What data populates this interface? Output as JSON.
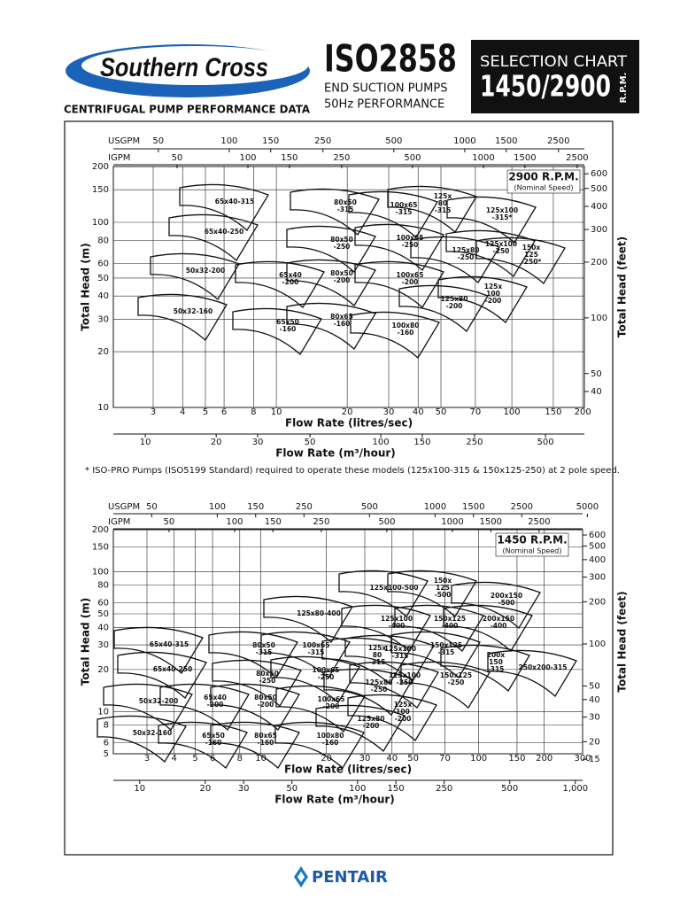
{
  "header": {
    "brand": "Southern Cross",
    "subtitle": "CENTRIFUGAL PUMP PERFORMANCE DATA",
    "standard": "ISO2858",
    "line1": "END SUCTION PUMPS",
    "line2": "50Hz PERFORMANCE",
    "badge_title": "SELECTION CHART",
    "badge_speed": "1450/2900",
    "badge_unit": "R.P.M."
  },
  "charts": [
    {
      "speed": "2900 R.P.M.",
      "speed_note": "(Nominal Speed)",
      "usgpm_label": "USGPM",
      "usgpm_ticks": [
        50,
        100,
        150,
        250,
        500,
        1000,
        1500,
        2500
      ],
      "igpm_label": "IGPM",
      "igpm_ticks": [
        50,
        100,
        150,
        250,
        500,
        1000,
        1500,
        2500
      ],
      "flow_ls_label": "Flow Rate (litres/sec)",
      "flow_ls_ticks": [
        3,
        4,
        5,
        6,
        8,
        10,
        20,
        30,
        40,
        50,
        70,
        100,
        150,
        200
      ],
      "m3h_label": "Flow Rate (m³/hour)",
      "m3h_ticks": [
        10,
        20,
        30,
        50,
        100,
        150,
        250,
        500
      ],
      "head_m_label": "Total Head (m)",
      "head_m_ticks": [
        10,
        20,
        30,
        40,
        50,
        60,
        80,
        100,
        150,
        200
      ],
      "head_ft_label": "Total Head (feet)",
      "head_ft_ticks": [
        40,
        50,
        100,
        200,
        300,
        400,
        500,
        600
      ],
      "models": [
        [
          "65x40-315"
        ],
        [
          "65x40-250"
        ],
        [
          "50x32-200"
        ],
        [
          "50x32-160"
        ],
        [
          "80x50",
          "-315"
        ],
        [
          "100x65",
          "-315"
        ],
        [
          "125x",
          "80",
          "-315"
        ],
        [
          "125x100",
          "-315*"
        ],
        [
          "80x50",
          "-250"
        ],
        [
          "100x65",
          "-250"
        ],
        [
          "125x80",
          "-250"
        ],
        [
          "125x100",
          "-250"
        ],
        [
          "150x",
          "125",
          "-250*"
        ],
        [
          "65x40",
          "-200"
        ],
        [
          "80x50",
          "-200"
        ],
        [
          "100x65",
          "-200"
        ],
        [
          "125x",
          "100",
          "-200"
        ],
        [
          "125x80",
          "-200"
        ],
        [
          "65x50",
          "-160"
        ],
        [
          "80x65",
          "-160"
        ],
        [
          "100x80",
          "-160"
        ]
      ]
    },
    {
      "speed": "1450 R.P.M.",
      "speed_note": "(Nominal Speed)",
      "usgpm_label": "USGPM",
      "usgpm_ticks": [
        50,
        100,
        150,
        250,
        500,
        1000,
        1500,
        2500,
        5000
      ],
      "igpm_label": "IGPM",
      "igpm_ticks": [
        50,
        100,
        150,
        250,
        500,
        1000,
        1500,
        2500
      ],
      "flow_ls_label": "Flow Rate (litres/sec)",
      "flow_ls_ticks": [
        3,
        4,
        5,
        6,
        8,
        10,
        20,
        30,
        40,
        50,
        70,
        100,
        150,
        200,
        300
      ],
      "m3h_label": "Flow Rate (m³/hour)",
      "m3h_ticks": [
        10,
        20,
        30,
        50,
        100,
        150,
        250,
        500,
        {
          "value": 1000,
          "label": "1,000"
        }
      ],
      "head_m_label": "Total Head (m)",
      "head_m_ticks": [
        5,
        6,
        8,
        10,
        20,
        30,
        40,
        50,
        60,
        80,
        100,
        150,
        200
      ],
      "head_ft_label": "Total Head (feet)",
      "head_ft_ticks": [
        15,
        20,
        30,
        40,
        50,
        100,
        200,
        300,
        400,
        500,
        600
      ],
      "models": [
        [
          "125x100-500"
        ],
        [
          "150x",
          "125",
          "-500"
        ],
        [
          "200x150",
          "-500"
        ],
        [
          "125x80-400"
        ],
        [
          "125x100",
          "-400"
        ],
        [
          "150x125",
          "-400"
        ],
        [
          "200x150",
          "-400"
        ],
        [
          "65x40-315"
        ],
        [
          "80x50",
          "-315"
        ],
        [
          "100x65",
          "-315"
        ],
        [
          "125x",
          "80",
          "-315"
        ],
        [
          "125x100",
          "-315"
        ],
        [
          "150x125",
          "-315"
        ],
        [
          "200x",
          "150",
          "-315"
        ],
        [
          "250x200-315"
        ],
        [
          "65x40-250"
        ],
        [
          "80x50",
          "-250"
        ],
        [
          "100x65",
          "-250"
        ],
        [
          "125x80",
          "-250"
        ],
        [
          "125x100",
          "-250"
        ],
        [
          "150x125",
          "-250"
        ],
        [
          "50x32-200"
        ],
        [
          "65x40",
          "-200"
        ],
        [
          "80x50",
          "-200"
        ],
        [
          "100x65",
          "-200"
        ],
        [
          "125x",
          "100",
          "-200"
        ],
        [
          "125x80",
          "-200"
        ],
        [
          "50x32-160"
        ],
        [
          "65x50",
          "-160"
        ],
        [
          "80x65",
          "-160"
        ],
        [
          "100x80",
          "-160"
        ]
      ]
    }
  ],
  "footnote": "* ISO-PRO Pumps (ISO5199 Standard) required to operate these models (125x100-315 & 150x125-250) at 2 pole speed.",
  "footer": {
    "logo": "PENTAIR"
  }
}
